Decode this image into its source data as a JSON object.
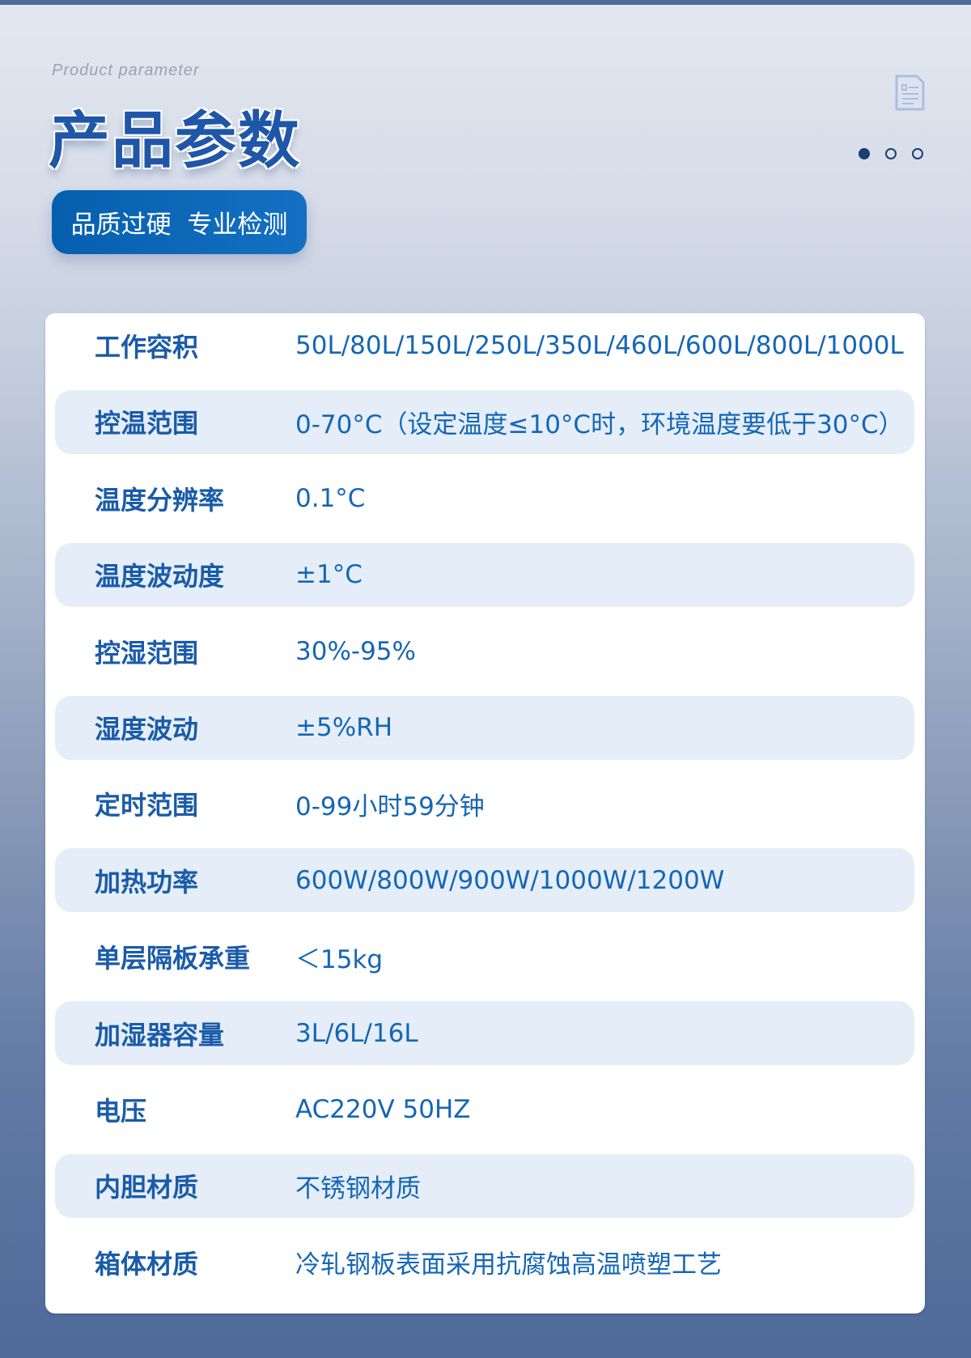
{
  "header": {
    "subtitle": "Product parameter",
    "title": "产品参数",
    "badge": "品质过硬  专业检测",
    "icon": "document-icon",
    "pager": {
      "count": 3,
      "active": 0
    }
  },
  "colors": {
    "accent": "#1f56a8",
    "badge": "#0b66b8",
    "stripe": "#e5eef8",
    "value_text": "#1566b6"
  },
  "params": [
    {
      "label": "工作容积",
      "value": "50L/80L/150L/250L/350L/460L/600L/800L/1000L"
    },
    {
      "label": "控温范围",
      "value": "0-70°C（设定温度≤10°C时，环境温度要低于30°C）"
    },
    {
      "label": "温度分辨率",
      "value": "0.1°C"
    },
    {
      "label": "温度波动度",
      "value": "±1°C"
    },
    {
      "label": "控湿范围",
      "value": "30%-95%"
    },
    {
      "label": "湿度波动",
      "value": "±5%RH"
    },
    {
      "label": "定时范围",
      "value": "0-99小时59分钟"
    },
    {
      "label": "加热功率",
      "value": "600W/800W/900W/1000W/1200W"
    },
    {
      "label": "单层隔板承重",
      "value": "＜15kg"
    },
    {
      "label": "加湿器容量",
      "value": "3L/6L/16L"
    },
    {
      "label": "电压",
      "value": "AC220V 50HZ"
    },
    {
      "label": "内胆材质",
      "value": "不锈钢材质"
    },
    {
      "label": "箱体材质",
      "value": "冷轧钢板表面采用抗腐蚀高温喷塑工艺"
    }
  ]
}
